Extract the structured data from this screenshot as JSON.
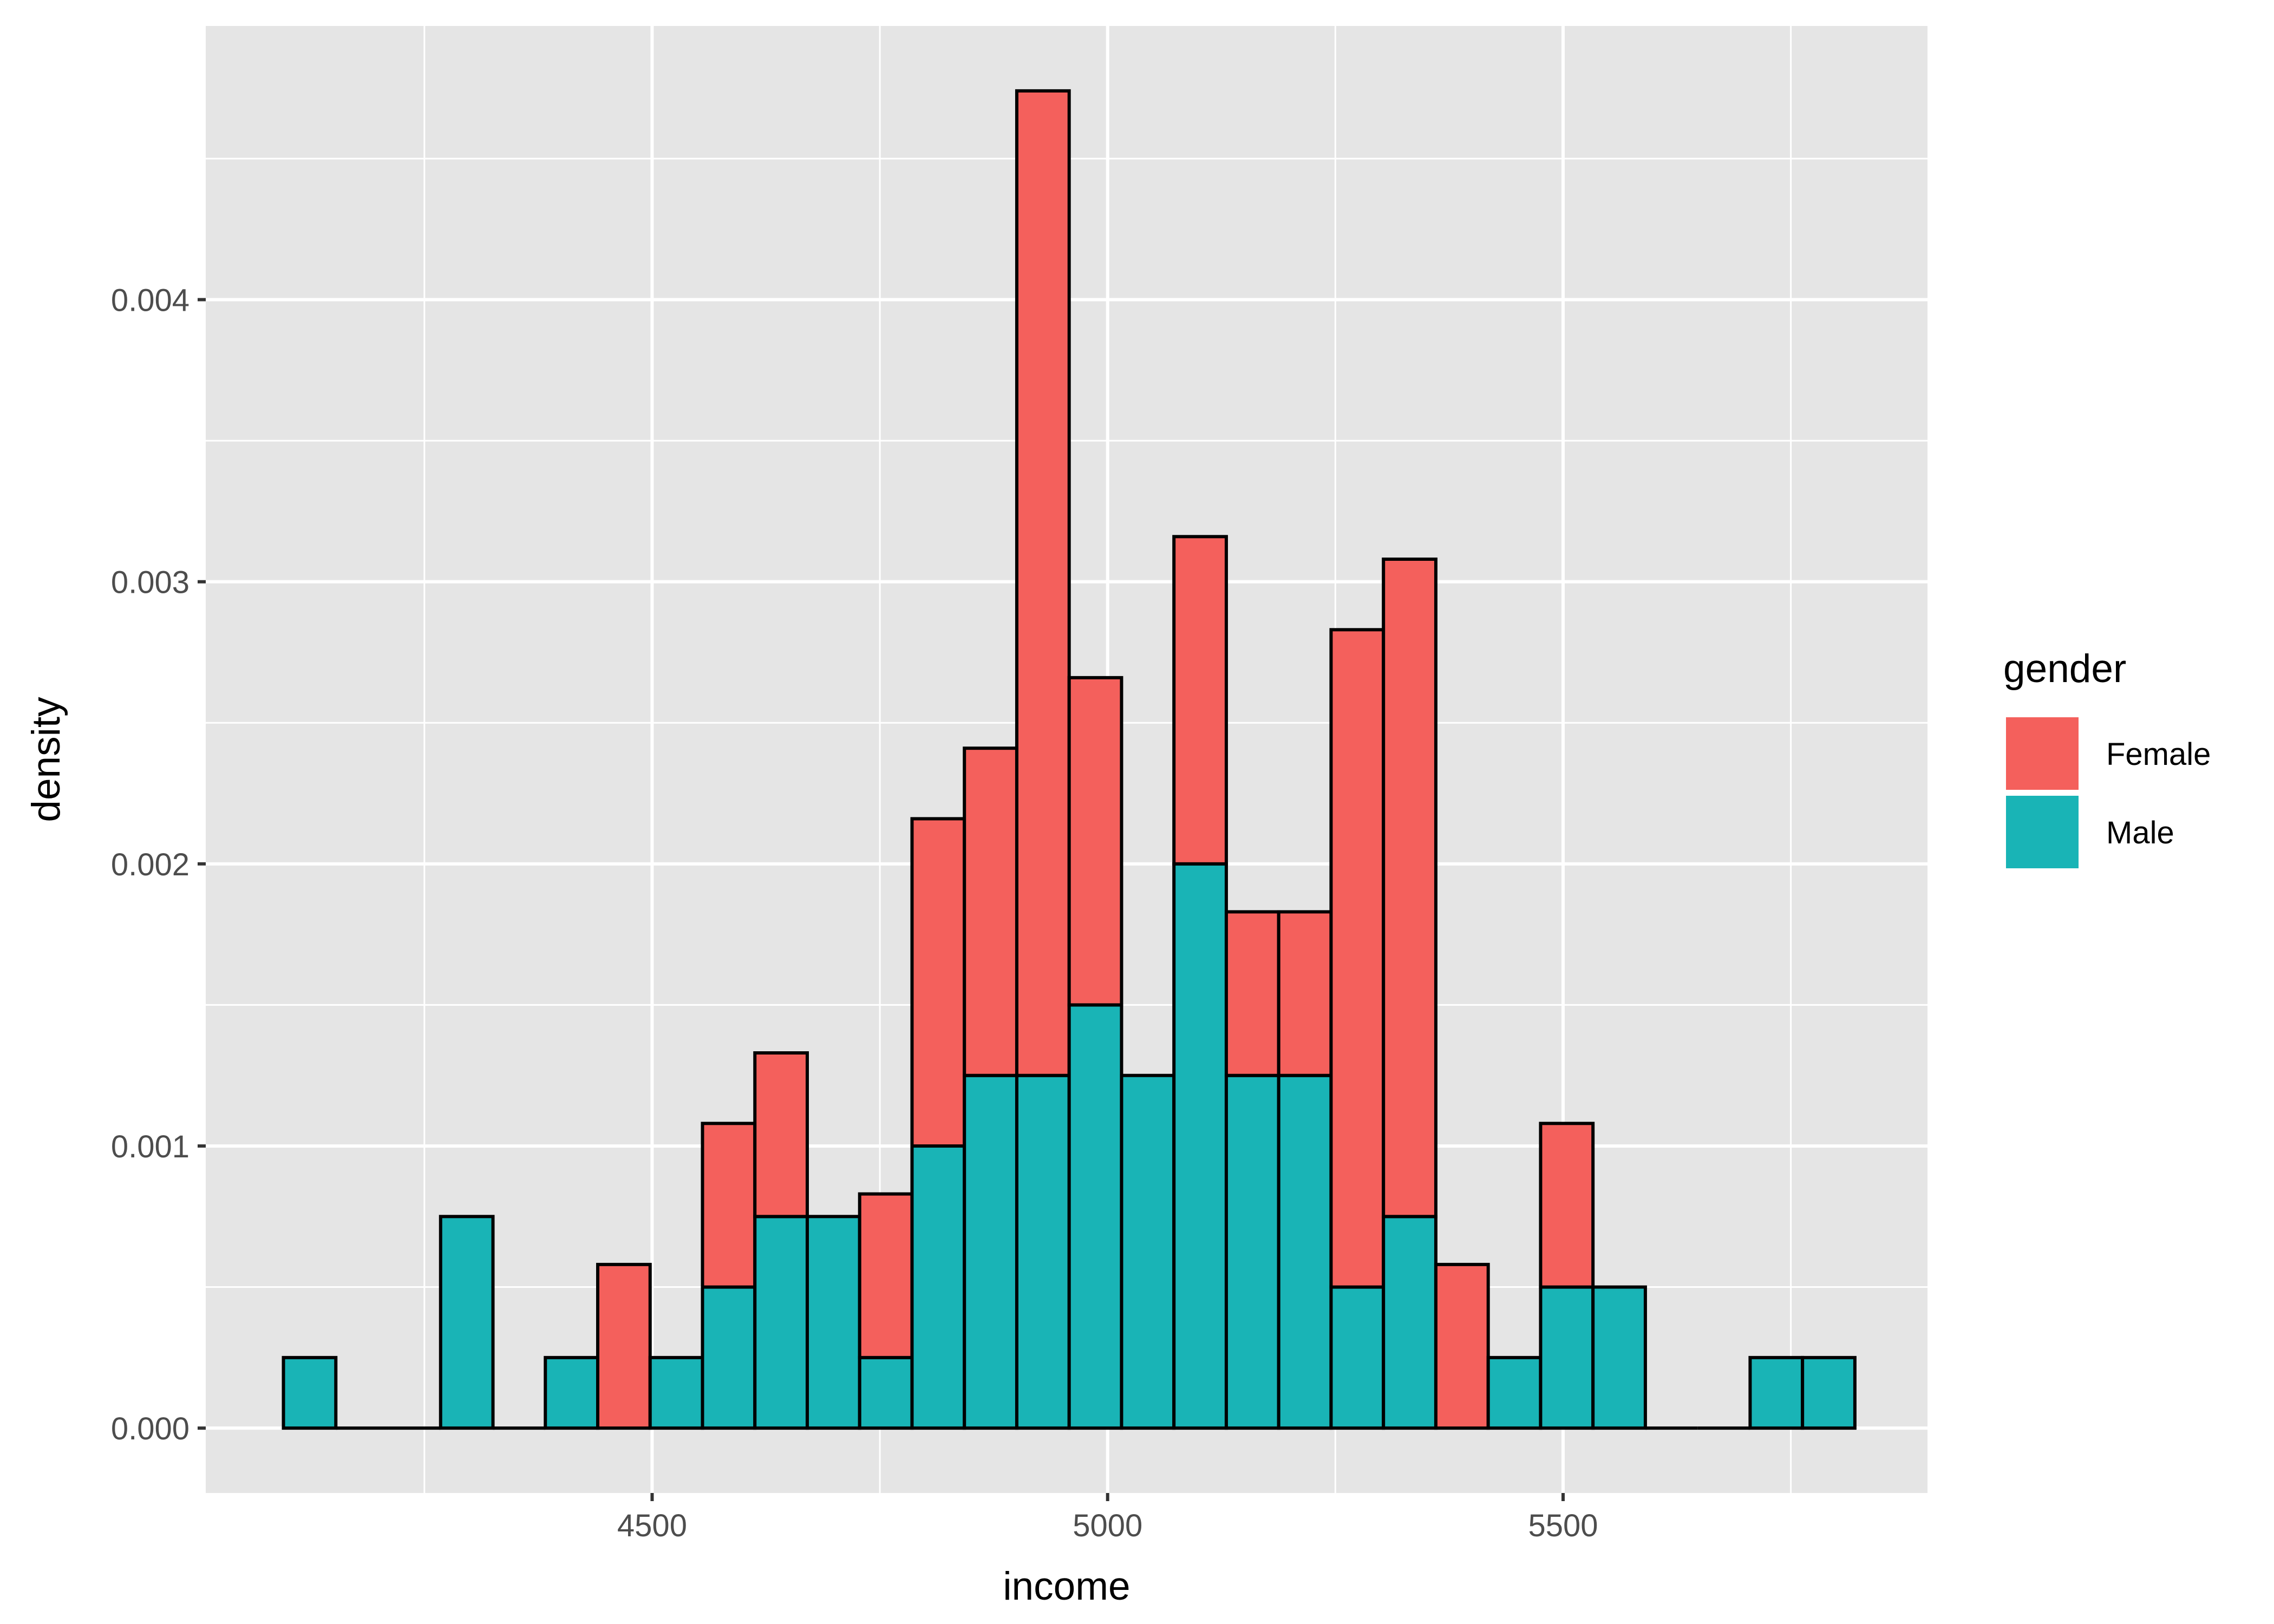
{
  "chart_data": {
    "type": "bar",
    "stacked": true,
    "title": "",
    "xlabel": "income",
    "ylabel": "density",
    "xlim": [
      4010,
      5900
    ],
    "ylim": [
      -0.00023,
      0.00497
    ],
    "x_ticks": [
      "4500",
      "5000",
      "5500"
    ],
    "x_tick_values": [
      4500,
      5000,
      5500
    ],
    "y_ticks": [
      "0.000",
      "0.001",
      "0.002",
      "0.003",
      "0.004"
    ],
    "y_tick_values": [
      0,
      0.001,
      0.002,
      0.003,
      0.004
    ],
    "bin_width": 57.5,
    "bin_start": 4095.3,
    "x": [
      4124,
      4181,
      4239,
      4296,
      4354,
      4411,
      4469,
      4526,
      4584,
      4641,
      4699,
      4756,
      4814,
      4871,
      4929,
      4986,
      5044,
      5101,
      5159,
      5216,
      5274,
      5331,
      5389,
      5446,
      5504,
      5561,
      5619,
      5676,
      5734,
      5791
    ],
    "series": [
      {
        "name": "Male",
        "color": "#19B4B6",
        "values": [
          0.00025,
          0,
          0,
          0.00075,
          0,
          0.00025,
          0,
          0.00025,
          0.0005,
          0.00075,
          0.00075,
          0.00025,
          0.001,
          0.00125,
          0.00125,
          0.0015,
          0.00125,
          0.002,
          0.00125,
          0.00125,
          0.0005,
          0.00075,
          0,
          0.00025,
          0.0005,
          0.0005,
          0,
          0,
          0.00025,
          0.00025
        ]
      },
      {
        "name": "Female",
        "color": "#F4605C",
        "values": [
          0,
          0,
          0,
          0,
          0,
          0,
          0.00058,
          0,
          0.00058,
          0.00058,
          0,
          0.00058,
          0.00116,
          0.00116,
          0.00349,
          0.00116,
          0,
          0.00116,
          0.00058,
          0.00058,
          0.00233,
          0.00233,
          0.00058,
          0,
          0.00058,
          0,
          0,
          0,
          0,
          0
        ]
      }
    ],
    "grid": true,
    "legend": {
      "title": "gender",
      "position": "right",
      "entries": [
        "Female",
        "Male"
      ]
    }
  }
}
